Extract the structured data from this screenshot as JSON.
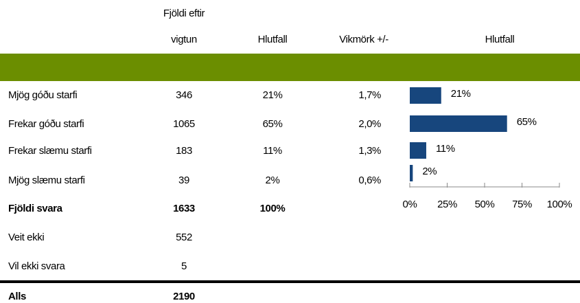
{
  "table": {
    "header": {
      "count": [
        "Fjöldi eftir",
        "vigtun"
      ],
      "share": "Hlutfall",
      "margin": "Vikmörk +/-",
      "chart": "Hlutfall"
    },
    "rows": [
      {
        "cells": [
          "Mjög góðu starfi",
          "346",
          "21%",
          "1,7%"
        ]
      },
      {
        "cells": [
          "Frekar góðu starfi",
          "1065",
          "65%",
          "2,0%"
        ]
      },
      {
        "cells": [
          "Frekar slæmu starfi",
          "183",
          "11%",
          "1,3%"
        ]
      },
      {
        "cells": [
          "Mjög slæmu starfi",
          "39",
          "2%",
          "0,6%"
        ]
      },
      {
        "cells": [
          "Fjöldi svara",
          "1633",
          "100%"
        ],
        "bold": true
      },
      {
        "cells": [
          "Veit ekki",
          "552"
        ]
      },
      {
        "cells": [
          "Vil ekki svara",
          "5"
        ]
      },
      {
        "cells": [
          "Alls",
          "2190"
        ],
        "bold": true,
        "rule_above": true
      }
    ],
    "band_color": "#6b8e00"
  },
  "chart_data": {
    "type": "bar",
    "orientation": "horizontal",
    "color": "#17467d",
    "values": [
      21,
      65,
      11,
      2
    ],
    "value_labels": [
      "21%",
      "65%",
      "11%",
      "2%"
    ],
    "xlim": [
      0,
      100
    ],
    "xticks": [
      {
        "value": 0,
        "label": "0%"
      },
      {
        "value": 25,
        "label": "25%"
      },
      {
        "value": 50,
        "label": "50%"
      },
      {
        "value": 75,
        "label": "75%"
      },
      {
        "value": 100,
        "label": "100%"
      }
    ]
  }
}
